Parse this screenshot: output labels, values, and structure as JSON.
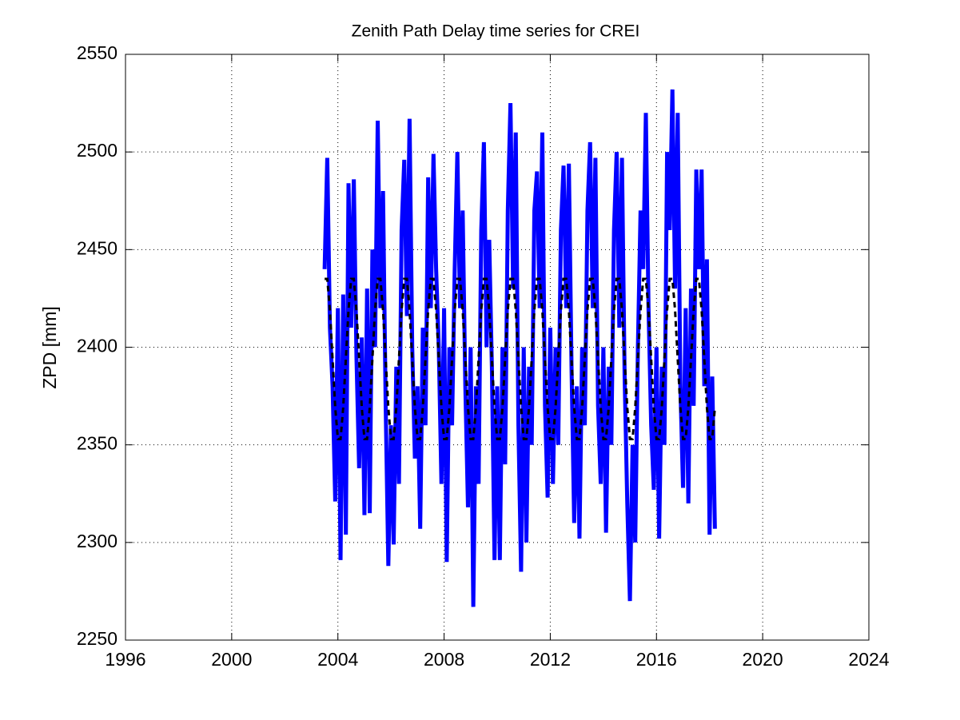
{
  "chart_data": {
    "type": "line",
    "title": "Zenith Path Delay time series for CREI",
    "y_label": "ZPD [mm]",
    "xlim": [
      1996,
      2024
    ],
    "xticks": [
      1996,
      2000,
      2004,
      2008,
      2012,
      2016,
      2020,
      2024
    ],
    "ylim": [
      2250,
      2550
    ],
    "yticks": [
      2250,
      2300,
      2350,
      2400,
      2450,
      2500,
      2550
    ],
    "grid": true,
    "x": [
      2003.5,
      2003.6,
      2003.7,
      2003.8,
      2003.9,
      2004.0,
      2004.1,
      2004.2,
      2004.3,
      2004.4,
      2004.5,
      2004.6,
      2004.7,
      2004.8,
      2004.9,
      2005.0,
      2005.1,
      2005.2,
      2005.3,
      2005.4,
      2005.5,
      2005.6,
      2005.7,
      2005.8,
      2005.9,
      2006.0,
      2006.1,
      2006.2,
      2006.3,
      2006.4,
      2006.5,
      2006.6,
      2006.7,
      2006.8,
      2006.9,
      2007.0,
      2007.1,
      2007.2,
      2007.3,
      2007.4,
      2007.5,
      2007.6,
      2007.7,
      2007.8,
      2007.9,
      2008.0,
      2008.1,
      2008.2,
      2008.3,
      2008.4,
      2008.5,
      2008.6,
      2008.7,
      2008.8,
      2008.9,
      2009.0,
      2009.1,
      2009.2,
      2009.3,
      2009.4,
      2009.5,
      2009.6,
      2009.7,
      2009.8,
      2009.9,
      2010.0,
      2010.1,
      2010.2,
      2010.3,
      2010.4,
      2010.5,
      2010.6,
      2010.7,
      2010.8,
      2010.9,
      2011.0,
      2011.1,
      2011.2,
      2011.3,
      2011.4,
      2011.5,
      2011.6,
      2011.7,
      2011.8,
      2011.9,
      2012.0,
      2012.1,
      2012.2,
      2012.3,
      2012.4,
      2012.5,
      2012.6,
      2012.7,
      2012.8,
      2012.9,
      2013.0,
      2013.1,
      2013.2,
      2013.3,
      2013.4,
      2013.5,
      2013.6,
      2013.7,
      2013.8,
      2013.9,
      2014.0,
      2014.1,
      2014.2,
      2014.3,
      2014.4,
      2014.5,
      2014.6,
      2014.7,
      2014.8,
      2014.9,
      2015.0,
      2015.1,
      2015.2,
      2015.3,
      2015.4,
      2015.5,
      2015.6,
      2015.7,
      2015.8,
      2015.9,
      2016.0,
      2016.1,
      2016.2,
      2016.3,
      2016.4,
      2016.5,
      2016.6,
      2016.7,
      2016.8,
      2016.9,
      2017.0,
      2017.1,
      2017.2,
      2017.3,
      2017.4,
      2017.5,
      2017.6,
      2017.7,
      2017.8,
      2017.9,
      2018.0,
      2018.1,
      2018.2
    ],
    "series": [
      {
        "color": "#0000ff",
        "line_width": 5,
        "values": [
          2440,
          2497,
          2410,
          2380,
          2321,
          2420,
          2291,
          2427,
          2304,
          2484,
          2410,
          2486,
          2395,
          2338,
          2405,
          2314,
          2430,
          2315,
          2450,
          2400,
          2516,
          2420,
          2480,
          2370,
          2288,
          2360,
          2299,
          2390,
          2330,
          2460,
          2496,
          2416,
          2517,
          2400,
          2343,
          2380,
          2307,
          2410,
          2360,
          2487,
          2420,
          2499,
          2440,
          2400,
          2330,
          2420,
          2290,
          2400,
          2360,
          2440,
          2500,
          2420,
          2470,
          2380,
          2318,
          2400,
          2267,
          2380,
          2330,
          2460,
          2505,
          2400,
          2455,
          2390,
          2291,
          2380,
          2291,
          2400,
          2340,
          2470,
          2525,
          2430,
          2510,
          2360,
          2285,
          2400,
          2300,
          2390,
          2350,
          2470,
          2490,
          2420,
          2510,
          2370,
          2323,
          2410,
          2330,
          2400,
          2350,
          2460,
          2493,
          2420,
          2494,
          2390,
          2310,
          2380,
          2302,
          2400,
          2360,
          2470,
          2505,
          2420,
          2497,
          2370,
          2330,
          2400,
          2305,
          2390,
          2350,
          2460,
          2500,
          2410,
          2497,
          2385,
          2320,
          2270,
          2350,
          2300,
          2400,
          2470,
          2440,
          2520,
          2420,
          2360,
          2327,
          2400,
          2302,
          2390,
          2350,
          2500,
          2460,
          2532,
          2430,
          2520,
          2380,
          2328,
          2420,
          2320,
          2430,
          2370,
          2491,
          2440,
          2491,
          2380,
          2445,
          2304,
          2385,
          2307
        ]
      },
      {
        "color": "#000000",
        "line_width": 3,
        "dashed": true,
        "values": [
          2435,
          2435,
          2419,
          2394,
          2369,
          2353,
          2353,
          2369,
          2394,
          2419,
          2435,
          2435,
          2419,
          2394,
          2369,
          2353,
          2353,
          2369,
          2394,
          2419,
          2435,
          2435,
          2419,
          2394,
          2369,
          2353,
          2353,
          2369,
          2394,
          2419,
          2435,
          2435,
          2419,
          2394,
          2369,
          2353,
          2353,
          2369,
          2394,
          2419,
          2435,
          2435,
          2419,
          2394,
          2369,
          2353,
          2353,
          2369,
          2394,
          2419,
          2435,
          2435,
          2419,
          2394,
          2369,
          2353,
          2353,
          2369,
          2394,
          2419,
          2435,
          2435,
          2419,
          2394,
          2369,
          2353,
          2353,
          2369,
          2394,
          2419,
          2435,
          2435,
          2419,
          2394,
          2369,
          2353,
          2353,
          2369,
          2394,
          2419,
          2435,
          2435,
          2419,
          2394,
          2369,
          2353,
          2353,
          2369,
          2394,
          2419,
          2435,
          2435,
          2419,
          2394,
          2369,
          2353,
          2353,
          2369,
          2394,
          2419,
          2435,
          2435,
          2419,
          2394,
          2369,
          2353,
          2353,
          2369,
          2394,
          2419,
          2435,
          2435,
          2419,
          2394,
          2369,
          2353,
          2353,
          2369,
          2394,
          2419,
          2435,
          2435,
          2419,
          2394,
          2369,
          2353,
          2353,
          2369,
          2394,
          2419,
          2435,
          2435,
          2419,
          2394,
          2369,
          2353,
          2353,
          2369,
          2394,
          2419,
          2435,
          2435,
          2419,
          2394,
          2369,
          2353,
          2353,
          2369
        ]
      }
    ]
  }
}
